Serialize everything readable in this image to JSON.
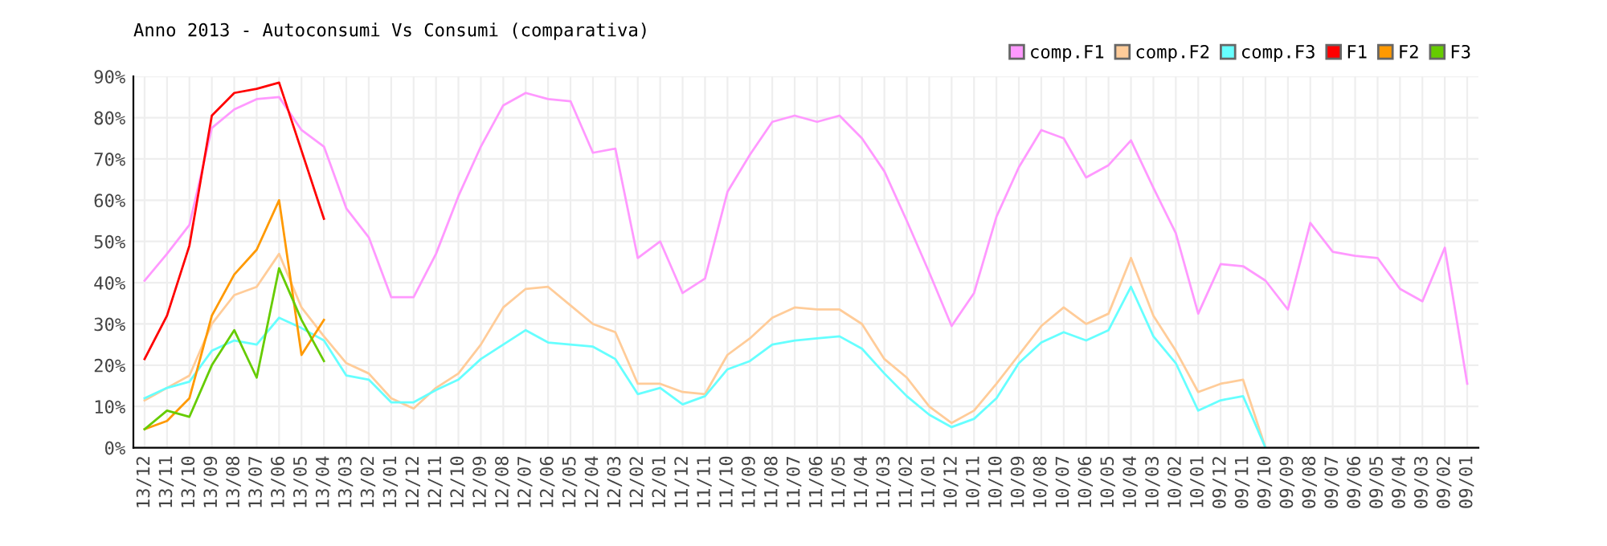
{
  "chart_data": {
    "type": "line",
    "title": "Anno 2013 - Autoconsumi Vs Consumi (comparativa)",
    "categories": [
      "13/12",
      "13/11",
      "13/10",
      "13/09",
      "13/08",
      "13/07",
      "13/06",
      "13/05",
      "13/04",
      "13/03",
      "13/02",
      "13/01",
      "12/12",
      "12/11",
      "12/10",
      "12/09",
      "12/08",
      "12/07",
      "12/06",
      "12/05",
      "12/04",
      "12/03",
      "12/02",
      "12/01",
      "11/12",
      "11/11",
      "11/10",
      "11/09",
      "11/08",
      "11/07",
      "11/06",
      "11/05",
      "11/04",
      "11/03",
      "11/02",
      "11/01",
      "10/12",
      "10/11",
      "10/10",
      "10/09",
      "10/08",
      "10/07",
      "10/06",
      "10/05",
      "10/04",
      "10/03",
      "10/02",
      "10/01",
      "09/12",
      "09/11",
      "09/10",
      "09/09",
      "09/08",
      "09/07",
      "09/06",
      "09/05",
      "09/04",
      "09/03",
      "09/02",
      "09/01"
    ],
    "series": [
      {
        "name": "comp.F1",
        "color": "#ff99ff",
        "values": [
          40.5,
          47,
          54,
          77.5,
          82,
          84.5,
          85,
          77,
          73,
          58,
          51,
          36.5,
          36.5,
          47,
          61,
          73,
          83,
          86,
          84.5,
          84,
          71.5,
          72.5,
          46,
          50,
          37.5,
          41,
          62,
          71,
          79,
          80.5,
          79,
          80.5,
          75,
          67,
          55,
          42.5,
          29.5,
          37.5,
          56,
          68,
          77,
          75,
          65.5,
          68.5,
          74.5,
          63,
          52,
          32.5,
          44.5,
          44,
          40.5,
          33.5,
          54.5,
          47.5,
          46.5,
          46,
          38.5,
          35.5,
          48.5,
          15.5
        ]
      },
      {
        "name": "comp.F2",
        "color": "#ffcc99",
        "values": [
          11.5,
          14.5,
          17.5,
          30,
          37,
          39,
          47,
          34,
          27,
          20.5,
          18,
          12,
          9.5,
          14.5,
          18,
          25,
          34,
          38.5,
          39,
          34.5,
          30,
          28,
          15.5,
          15.5,
          13.5,
          13,
          22.5,
          26.5,
          31.5,
          34,
          33.5,
          33.5,
          30,
          21.5,
          17,
          10,
          6,
          9,
          15.5,
          22.5,
          29.5,
          34,
          30,
          32.5,
          46,
          32,
          23.5,
          13.5,
          15.5,
          16.5,
          0,
          null,
          null,
          null,
          null,
          null,
          null,
          null,
          null,
          null
        ]
      },
      {
        "name": "comp.F3",
        "color": "#66ffff",
        "values": [
          12,
          14.5,
          16,
          23.5,
          26,
          25,
          31.5,
          29,
          26,
          17.5,
          16.5,
          11,
          11,
          14,
          16.5,
          21.5,
          25,
          28.5,
          25.5,
          25,
          24.5,
          21.5,
          13,
          14.5,
          10.5,
          12.5,
          19,
          21,
          25,
          26,
          26.5,
          27,
          24,
          18,
          12.5,
          8,
          5,
          7,
          12,
          20.5,
          25.5,
          28,
          26,
          28.5,
          39,
          27,
          20.5,
          9,
          11.5,
          12.5,
          0,
          null,
          null,
          null,
          null,
          null,
          null,
          null,
          null,
          null
        ]
      },
      {
        "name": "F1",
        "color": "#ff0000",
        "values": [
          21.5,
          32,
          49,
          80.5,
          86,
          87,
          88.5,
          72,
          55.5,
          null,
          null,
          null,
          null,
          null,
          null,
          null,
          null,
          null,
          null,
          null,
          null,
          null,
          null,
          null,
          null,
          null,
          null,
          null,
          null,
          null,
          null,
          null,
          null,
          null,
          null,
          null,
          null,
          null,
          null,
          null,
          null,
          null,
          null,
          null,
          null,
          null,
          null,
          null,
          null,
          null,
          null,
          null,
          null,
          null,
          null,
          null,
          null,
          null,
          null,
          null
        ]
      },
      {
        "name": "F2",
        "color": "#ff9900",
        "values": [
          4.5,
          6.5,
          12,
          32,
          42,
          48,
          60,
          22.5,
          31,
          null,
          null,
          null,
          null,
          null,
          null,
          null,
          null,
          null,
          null,
          null,
          null,
          null,
          null,
          null,
          null,
          null,
          null,
          null,
          null,
          null,
          null,
          null,
          null,
          null,
          null,
          null,
          null,
          null,
          null,
          null,
          null,
          null,
          null,
          null,
          null,
          null,
          null,
          null,
          null,
          null,
          null,
          null,
          null,
          null,
          null,
          null,
          null,
          null,
          null,
          null
        ]
      },
      {
        "name": "F3",
        "color": "#66cc00",
        "values": [
          4.5,
          9,
          7.5,
          20,
          28.5,
          17,
          43.5,
          31,
          21,
          null,
          null,
          null,
          null,
          null,
          null,
          null,
          null,
          null,
          null,
          null,
          null,
          null,
          null,
          null,
          null,
          null,
          null,
          null,
          null,
          null,
          null,
          null,
          null,
          null,
          null,
          null,
          null,
          null,
          null,
          null,
          null,
          null,
          null,
          null,
          null,
          null,
          null,
          null,
          null,
          null,
          null,
          null,
          null,
          null,
          null,
          null,
          null,
          null,
          null,
          null
        ]
      }
    ],
    "ylim": [
      0,
      90
    ],
    "yticks": [
      {
        "value": 0,
        "label": "0%"
      },
      {
        "value": 10,
        "label": "10%"
      },
      {
        "value": 20,
        "label": "20%"
      },
      {
        "value": 30,
        "label": "30%"
      },
      {
        "value": 40,
        "label": "40%"
      },
      {
        "value": 50,
        "label": "50%"
      },
      {
        "value": 60,
        "label": "60%"
      },
      {
        "value": 70,
        "label": "70%"
      },
      {
        "value": 80,
        "label": "80%"
      },
      {
        "value": 90,
        "label": "90%"
      }
    ],
    "grid": true,
    "legend": "top right",
    "marker": "none",
    "line_style": "solid"
  }
}
